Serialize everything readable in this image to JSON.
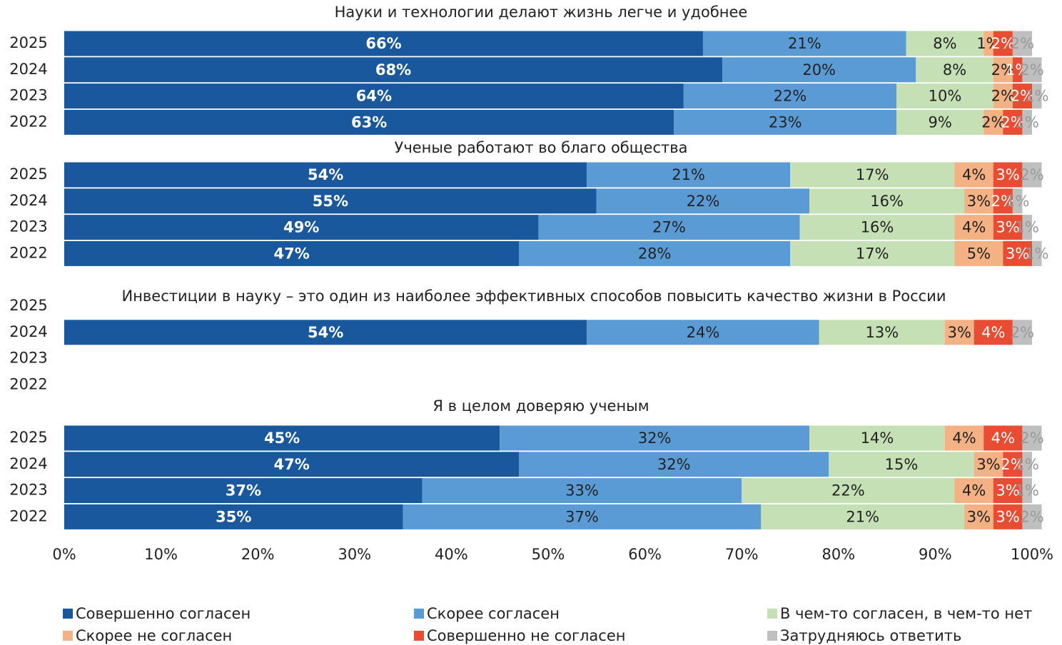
{
  "chart_data": {
    "type": "bar",
    "orientation": "horizontal",
    "stacked": true,
    "xlim": [
      0,
      100
    ],
    "xticks": [
      {
        "value": 0,
        "label": "0%"
      },
      {
        "value": 10,
        "label": "10%"
      },
      {
        "value": 20,
        "label": "20%"
      },
      {
        "value": 30,
        "label": "30%"
      },
      {
        "value": 40,
        "label": "40%"
      },
      {
        "value": 50,
        "label": "50%"
      },
      {
        "value": 60,
        "label": "60%"
      },
      {
        "value": 70,
        "label": "70%"
      },
      {
        "value": 80,
        "label": "80%"
      },
      {
        "value": 90,
        "label": "90%"
      },
      {
        "value": 100,
        "label": "100%"
      }
    ],
    "series": [
      {
        "name": "Совершенно согласен",
        "color": "#1a589e"
      },
      {
        "name": "Скорее согласен",
        "color": "#5b9bd5"
      },
      {
        "name": "В чем-то согласен, в чем-то нет",
        "color": "#c5e0b4"
      },
      {
        "name": "Скорее не согласен",
        "color": "#f4b183"
      },
      {
        "name": "Совершенно не согласен",
        "color": "#e84c33"
      },
      {
        "name": "Затрудняюсь ответить",
        "color": "#bfbfbf"
      }
    ],
    "groups": [
      {
        "title": "Науки и технологии делают жизнь легче и удобнее",
        "categories": [
          "2025",
          "2024",
          "2023",
          "2022"
        ],
        "values": [
          [
            66,
            21,
            8,
            1,
            2,
            2
          ],
          [
            68,
            20,
            8,
            2,
            1,
            2
          ],
          [
            64,
            22,
            10,
            2,
            2,
            1
          ],
          [
            63,
            23,
            9,
            2,
            2,
            1
          ]
        ],
        "value_labels": [
          [
            "66%",
            "21%",
            "8%",
            "1%",
            "2%",
            "2%"
          ],
          [
            "68%",
            "20%",
            "8%",
            "2%",
            "1%",
            "2%"
          ],
          [
            "64%",
            "22%",
            "10%",
            "2%",
            "2%",
            "1%"
          ],
          [
            "63%",
            "23%",
            "9%",
            "2%",
            "2%",
            "1%"
          ]
        ]
      },
      {
        "title": "Ученые работают во благо общества",
        "categories": [
          "2025",
          "2024",
          "2023",
          "2022"
        ],
        "values": [
          [
            54,
            21,
            17,
            4,
            3,
            2
          ],
          [
            55,
            22,
            16,
            3,
            2,
            1
          ],
          [
            49,
            27,
            16,
            4,
            3,
            1
          ],
          [
            47,
            28,
            17,
            5,
            3,
            1
          ]
        ],
        "value_labels": [
          [
            "54%",
            "21%",
            "17%",
            "4%",
            "3%",
            "2%"
          ],
          [
            "55%",
            "22%",
            "16%",
            "3%",
            "2%",
            "1%"
          ],
          [
            "49%",
            "27%",
            "16%",
            "4%",
            "3%",
            "1%"
          ],
          [
            "47%",
            "28%",
            "17%",
            "5%",
            "3%",
            "1%"
          ]
        ]
      },
      {
        "title": "Инвестиции в науку – это один из наиболее эффективных способов повысить качество жизни в России",
        "categories": [
          "2025",
          "2024",
          "2023",
          "2022"
        ],
        "values": [
          null,
          [
            54,
            24,
            13,
            3,
            4,
            2
          ],
          null,
          null
        ],
        "value_labels": [
          null,
          [
            "54%",
            "24%",
            "13%",
            "3%",
            "4%",
            "2%"
          ],
          null,
          null
        ]
      },
      {
        "title": "Я в целом доверяю ученым",
        "categories": [
          "2025",
          "2024",
          "2023",
          "2022"
        ],
        "values": [
          [
            45,
            32,
            14,
            4,
            4,
            2
          ],
          [
            47,
            32,
            15,
            3,
            2,
            1
          ],
          [
            37,
            33,
            22,
            4,
            3,
            1
          ],
          [
            35,
            37,
            21,
            3,
            3,
            2
          ]
        ],
        "value_labels": [
          [
            "45%",
            "32%",
            "14%",
            "4%",
            "4%",
            "2%"
          ],
          [
            "47%",
            "32%",
            "15%",
            "3%",
            "2%",
            "1%"
          ],
          [
            "37%",
            "33%",
            "22%",
            "4%",
            "3%",
            "1%"
          ],
          [
            "35%",
            "37%",
            "21%",
            "3%",
            "3%",
            "2%"
          ]
        ]
      }
    ]
  }
}
